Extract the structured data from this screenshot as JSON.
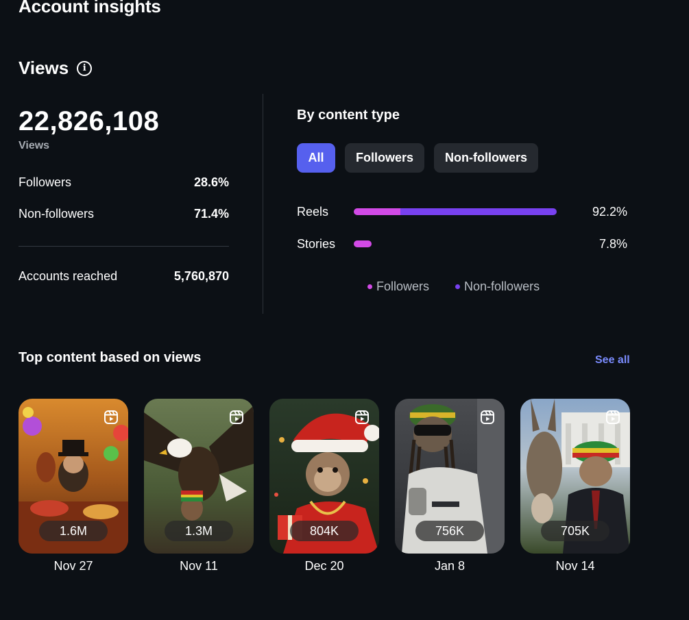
{
  "header": {
    "title": "Account insights"
  },
  "views": {
    "heading": "Views",
    "total": "22,826,108",
    "total_label": "Views",
    "breakdown": [
      {
        "label": "Followers",
        "value": "28.6%"
      },
      {
        "label": "Non-followers",
        "value": "71.4%"
      }
    ],
    "reached": {
      "label": "Accounts reached",
      "value": "5,760,870"
    }
  },
  "content_type": {
    "title": "By content type",
    "filters": [
      "All",
      "Followers",
      "Non-followers"
    ],
    "selected_filter": "All",
    "rows": [
      {
        "label": "Reels",
        "percent": "92.2%",
        "share": 0.922,
        "followers_fraction": 0.23
      },
      {
        "label": "Stories",
        "percent": "7.8%",
        "share": 0.078,
        "followers_fraction": 1.0
      }
    ],
    "legend": [
      "Followers",
      "Non-followers"
    ],
    "colors": {
      "followers": "#d24ae6",
      "non_followers": "#7841f0"
    }
  },
  "top_content": {
    "title": "Top content based on views",
    "see_all": "See all",
    "items": [
      {
        "views": "1.6M",
        "date": "Nov 27"
      },
      {
        "views": "1.3M",
        "date": "Nov 11"
      },
      {
        "views": "804K",
        "date": "Dec 20"
      },
      {
        "views": "756K",
        "date": "Jan 8"
      },
      {
        "views": "705K",
        "date": "Nov 14"
      }
    ]
  }
}
